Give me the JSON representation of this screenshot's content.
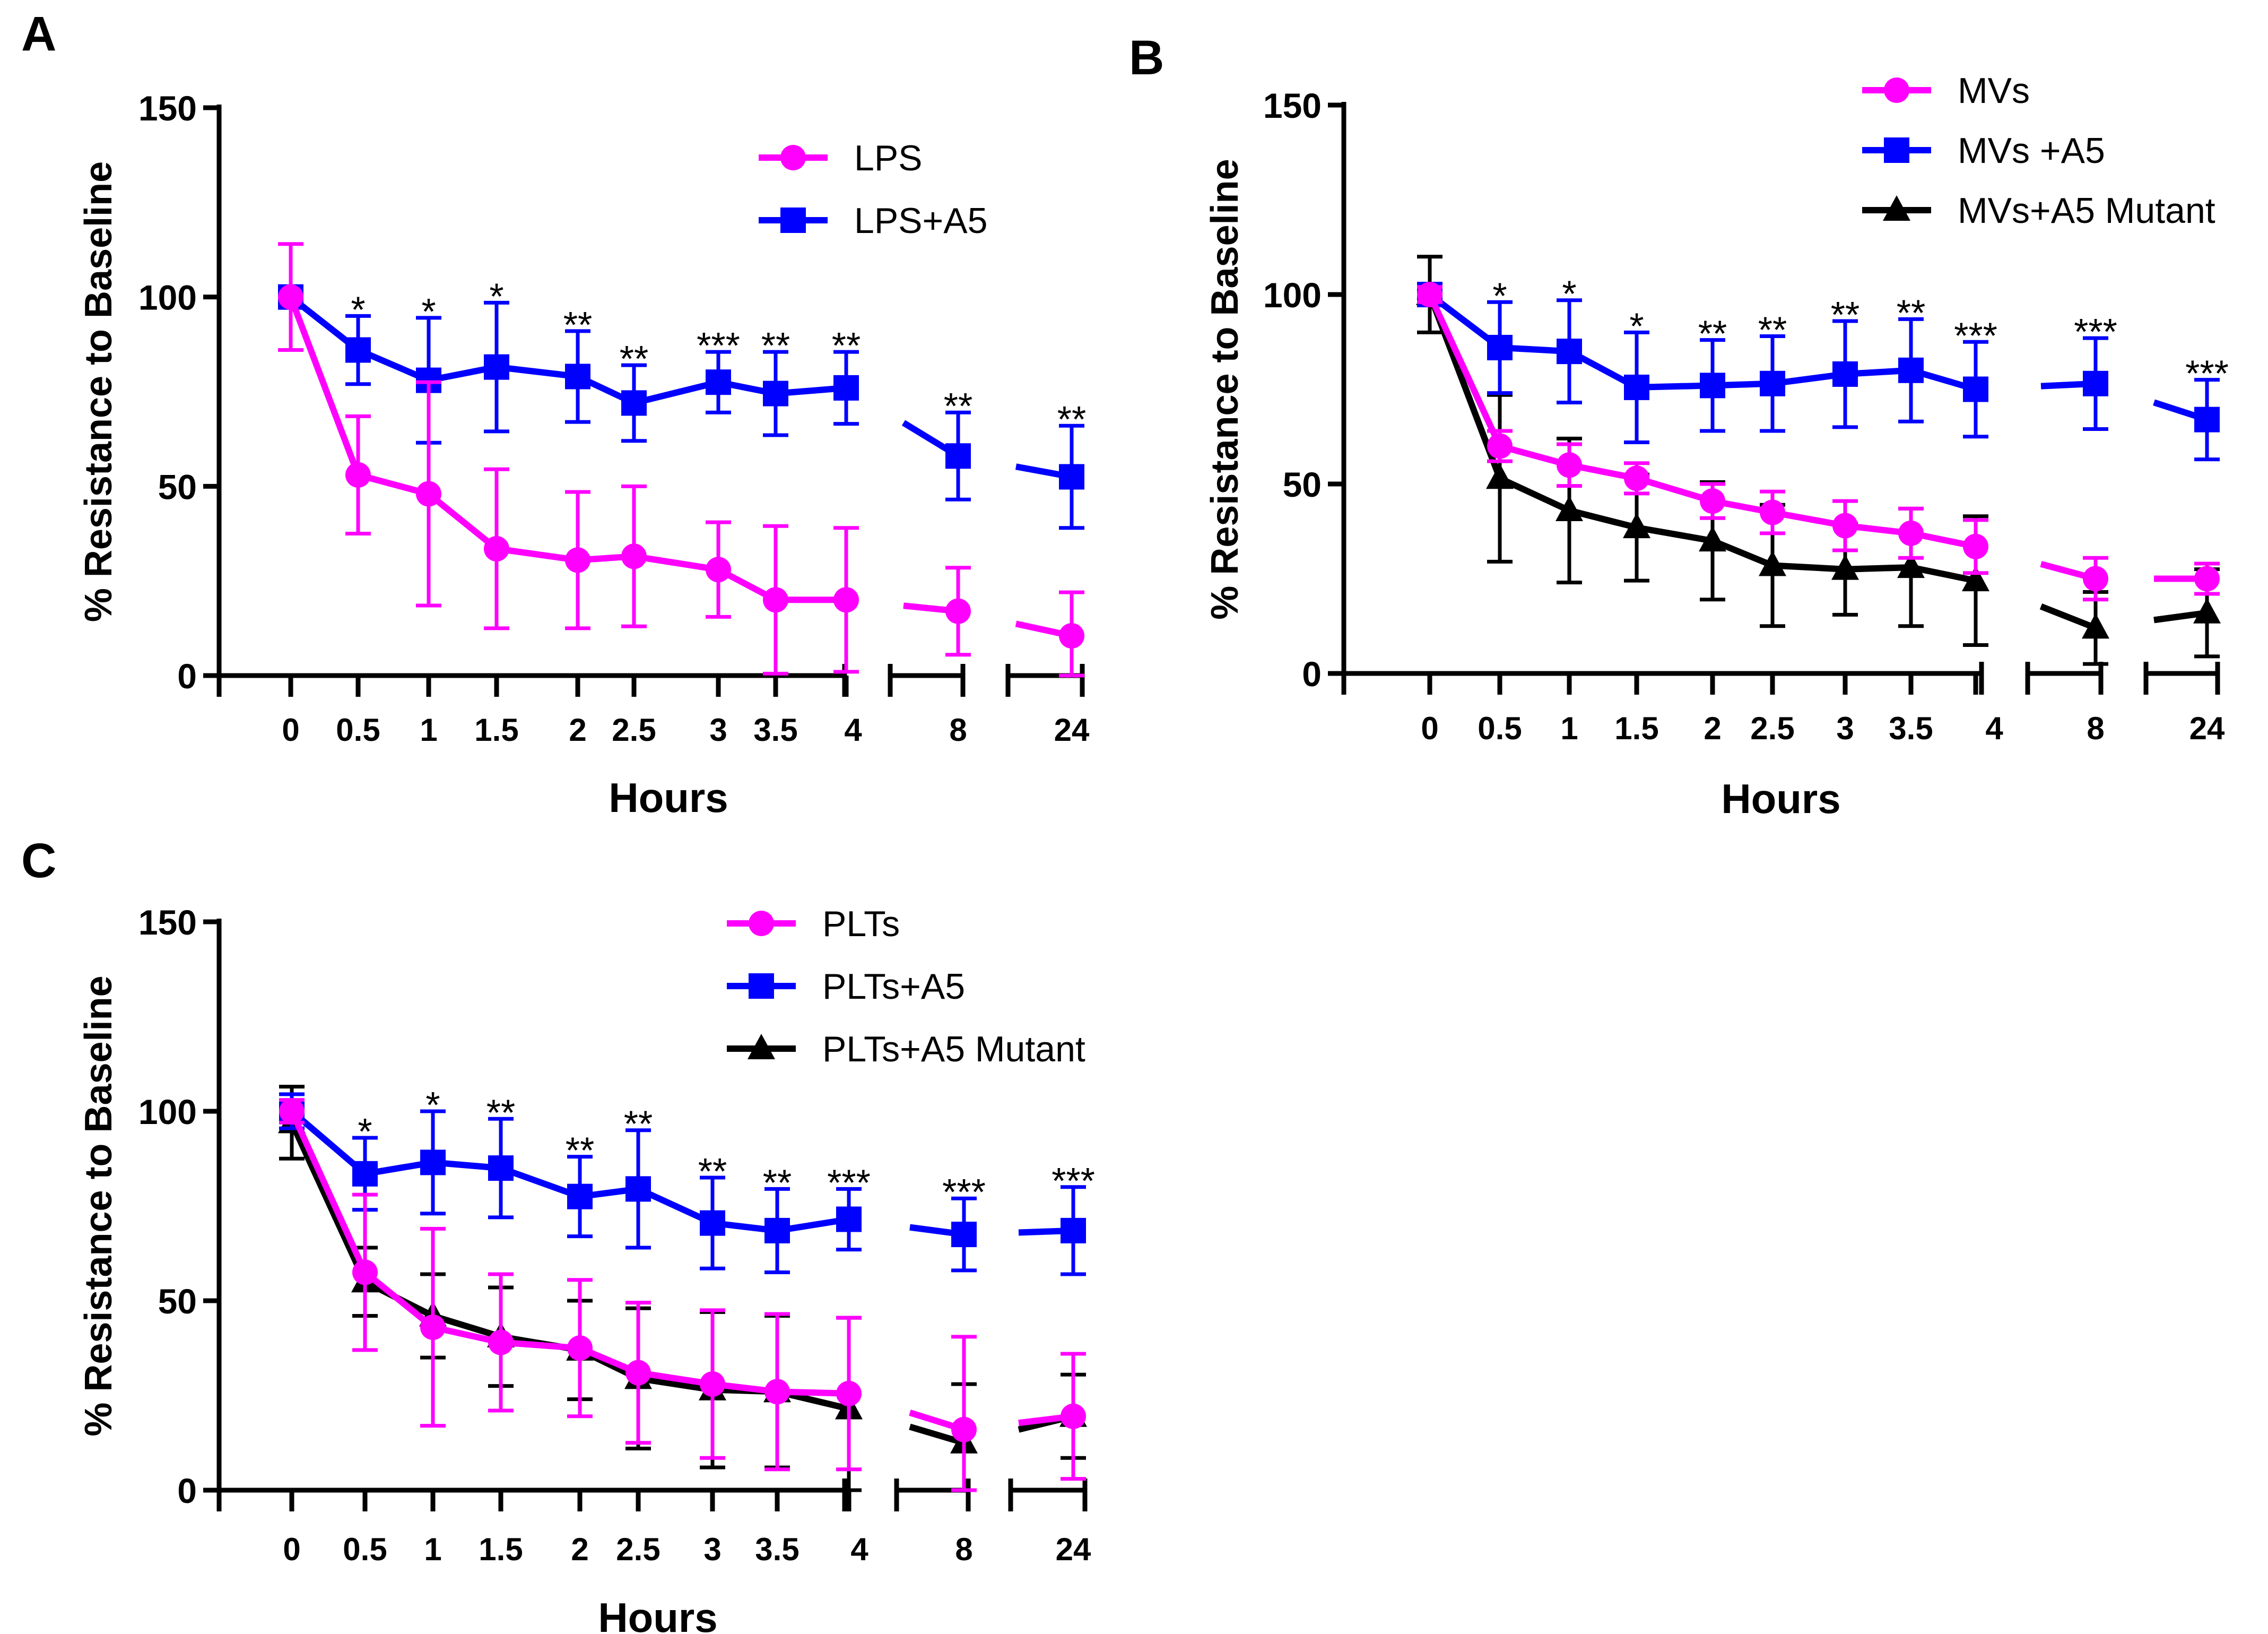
{
  "chart_data": [
    {
      "type": "line",
      "panel_label": "A",
      "xlabel": "Hours",
      "ylabel": "% Resistance to Baseline",
      "ylim": [
        0,
        150
      ],
      "yticks": [
        "0",
        "50",
        "100",
        "150"
      ],
      "categories": [
        "0",
        "0.5",
        "1",
        "1.5",
        "2",
        "2.5",
        "3",
        "3.5",
        "4",
        "8",
        "24"
      ],
      "series": [
        {
          "name": "LPS",
          "color": "#ff00ff",
          "marker": "circle",
          "values": [
            100,
            53,
            48,
            33.5,
            30.5,
            31.5,
            28,
            20,
            20,
            17,
            10.5
          ],
          "err": [
            14,
            15.5,
            29.5,
            21,
            18,
            18.5,
            12.5,
            19.5,
            19,
            11.5,
            11.5
          ]
        },
        {
          "name": "LPS+A5",
          "color": "#0000ff",
          "marker": "square",
          "values": [
            100,
            86,
            78,
            81.5,
            79,
            72,
            77.5,
            74.5,
            76,
            58,
            52.5
          ],
          "err": [
            2,
            9,
            16.5,
            17,
            12,
            10,
            8,
            11,
            9.5,
            11.5,
            13.5
          ]
        }
      ],
      "annotations": [
        "",
        "*",
        "*",
        "*",
        "**",
        "**",
        "***",
        "**",
        "**",
        "**",
        "**"
      ]
    },
    {
      "type": "line",
      "panel_label": "B",
      "xlabel": "Hours",
      "ylabel": "% Resistance to Baseline",
      "ylim": [
        0,
        150
      ],
      "yticks": [
        "0",
        "50",
        "100",
        "150"
      ],
      "categories": [
        "0",
        "0.5",
        "1",
        "1.5",
        "2",
        "2.5",
        "3",
        "3.5",
        "4",
        "8",
        "24"
      ],
      "series": [
        {
          "name": "MVs",
          "color": "#ff00ff",
          "marker": "circle",
          "values": [
            100,
            60,
            55,
            51.5,
            45.5,
            42.5,
            39,
            37,
            33.5,
            25,
            25
          ],
          "err": [
            2,
            4,
            5.5,
            4,
            4.5,
            5.5,
            6.5,
            6.5,
            7,
            5.5,
            4
          ]
        },
        {
          "name": "MVs +A5",
          "color": "#0000ff",
          "marker": "square",
          "values": [
            100,
            86,
            85,
            75.5,
            76,
            76.5,
            79,
            80,
            75,
            76.5,
            67
          ],
          "err": [
            2,
            12,
            13.5,
            14.5,
            12,
            12.5,
            14,
            13.5,
            12.5,
            12,
            10.5
          ]
        },
        {
          "name": "MVs+A5 Mutant",
          "color": "#000000",
          "marker": "triangle",
          "values": [
            100,
            51.5,
            43,
            38.5,
            35,
            28.5,
            27.5,
            28,
            24.5,
            12,
            16
          ],
          "err": [
            10,
            22,
            19,
            14,
            15.5,
            16,
            12,
            15.5,
            17,
            9.5,
            11.5
          ]
        }
      ],
      "annotations": [
        "",
        "*",
        "*",
        "*",
        "**",
        "**",
        "**",
        "**",
        "***",
        "***",
        "***"
      ]
    },
    {
      "type": "line",
      "panel_label": "C",
      "xlabel": "Hours",
      "ylabel": "% Resistance to Baseline",
      "ylim": [
        0,
        150
      ],
      "yticks": [
        "0",
        "50",
        "100",
        "150"
      ],
      "categories": [
        "0",
        "0.5",
        "1",
        "1.5",
        "2",
        "2.5",
        "3",
        "3.5",
        "4",
        "8",
        "24"
      ],
      "series": [
        {
          "name": "PLTs",
          "color": "#ff00ff",
          "marker": "circle",
          "values": [
            100,
            57.5,
            43,
            39,
            37.5,
            31,
            28,
            26,
            25.5,
            16,
            19.5
          ],
          "err": [
            3,
            20.5,
            26,
            18,
            18,
            18.5,
            19.5,
            20.5,
            20,
            24.5,
            16.5
          ]
        },
        {
          "name": "PLTs+A5",
          "color": "#0000ff",
          "marker": "square",
          "values": [
            100,
            83.5,
            86.5,
            85,
            77.5,
            79.5,
            70.5,
            68.5,
            71.5,
            67.5,
            68.5
          ],
          "err": [
            4.5,
            9.5,
            13.5,
            13,
            10.5,
            15.5,
            12,
            11,
            8,
            9.5,
            11.5
          ]
        },
        {
          "name": "PLTs+A5 Mutant",
          "color": "#000000",
          "marker": "triangle",
          "values": [
            97,
            55,
            46,
            40.5,
            37,
            29.5,
            26.5,
            26,
            21.5,
            12.5,
            19.5
          ],
          "err": [
            9.5,
            9,
            11,
            13,
            13,
            18.5,
            20.5,
            20,
            24,
            15.5,
            11
          ]
        }
      ],
      "annotations": [
        "",
        "*",
        "*",
        "**",
        "**",
        "**",
        "**",
        "**",
        "***",
        "***",
        "***"
      ]
    }
  ]
}
